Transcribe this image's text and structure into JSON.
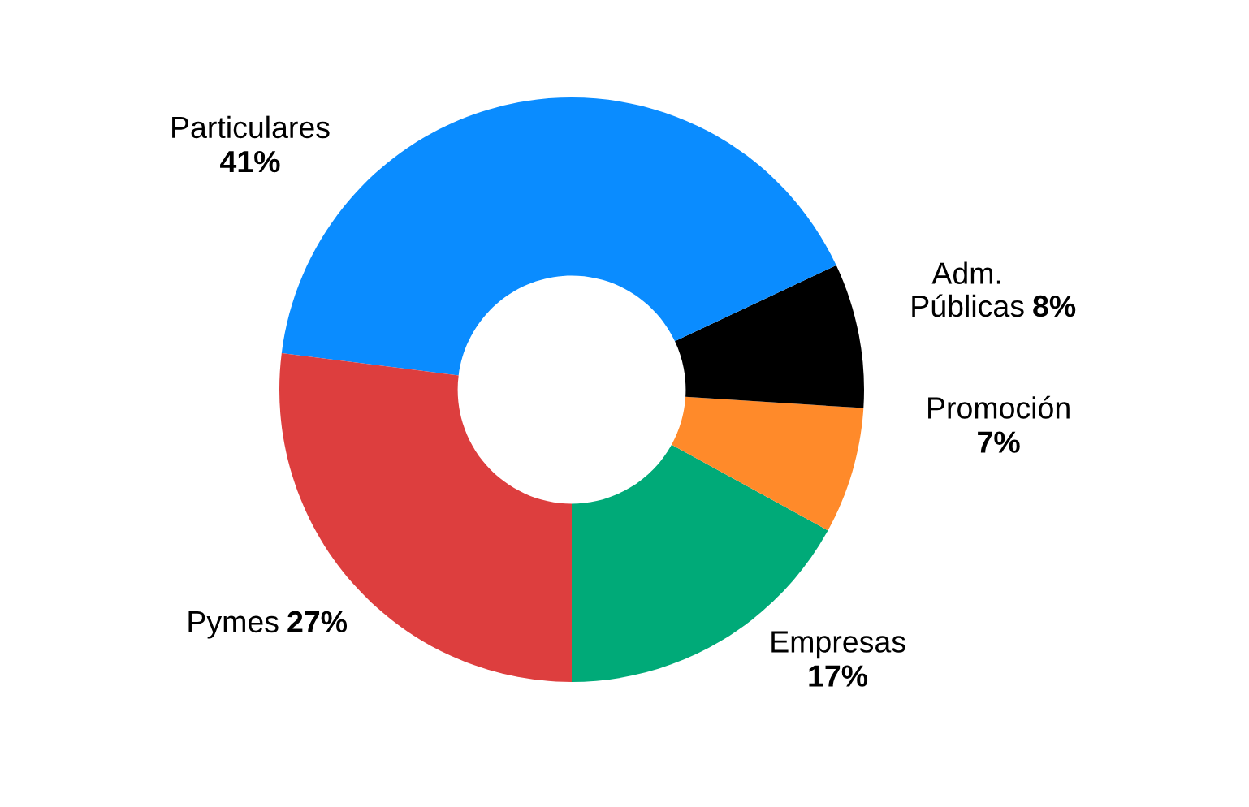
{
  "chart_data": {
    "type": "donut",
    "categories": [
      "Empresas",
      "Promoción",
      "Adm.\nPúblicas",
      "Particulares",
      "Pymes"
    ],
    "values": [
      17,
      7,
      8,
      41,
      27
    ],
    "value_labels": [
      "17%",
      "7%",
      "8%",
      "41%",
      "27%"
    ],
    "colors": [
      "#00aa78",
      "#ff8a2a",
      "#000000",
      "#0a8cff",
      "#dd3e3e"
    ]
  }
}
